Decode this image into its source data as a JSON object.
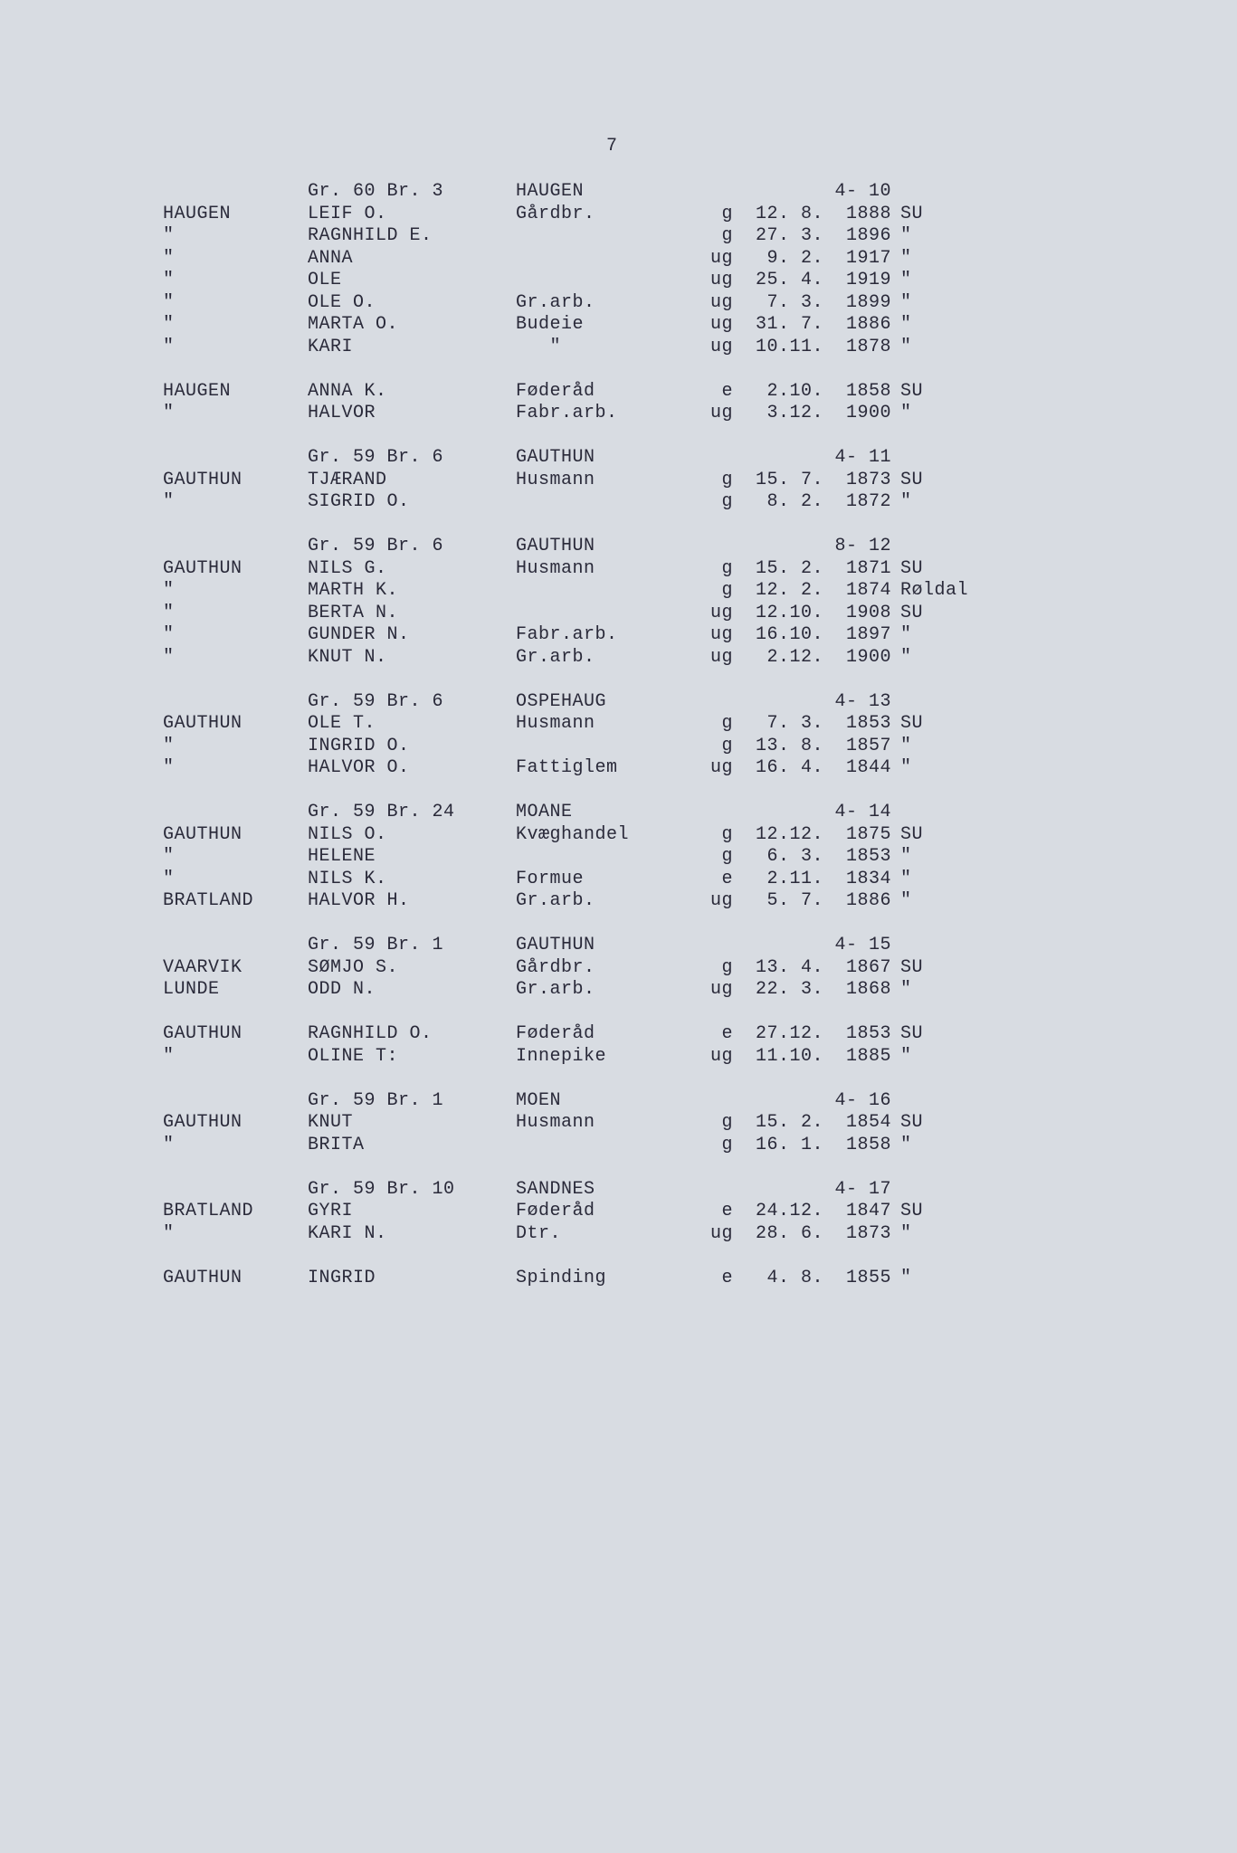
{
  "page_number": "7",
  "background_color": "#d8dce2",
  "text_color": "#2a2a3a",
  "font": "Courier New",
  "font_size_pt": 15,
  "groups": [
    {
      "header": {
        "grbr": "Gr. 60 Br. 3",
        "place": "HAUGEN",
        "code": "4- 10"
      },
      "rows": [
        {
          "c1": "HAUGEN",
          "c2": "LEIF O.",
          "c3": "Gårdbr.",
          "c4": "g",
          "c5": "12. 8.",
          "c6": "1888",
          "c7": "SU"
        },
        {
          "c1": "\"",
          "c2": "RAGNHILD E.",
          "c3": "",
          "c4": "g",
          "c5": "27. 3.",
          "c6": "1896",
          "c7": "\""
        },
        {
          "c1": "\"",
          "c2": "ANNA",
          "c3": "",
          "c4": "ug",
          "c5": "9. 2.",
          "c6": "1917",
          "c7": "\""
        },
        {
          "c1": "\"",
          "c2": "OLE",
          "c3": "",
          "c4": "ug",
          "c5": "25. 4.",
          "c6": "1919",
          "c7": "\""
        },
        {
          "c1": "\"",
          "c2": "OLE O.",
          "c3": "Gr.arb.",
          "c4": "ug",
          "c5": "7. 3.",
          "c6": "1899",
          "c7": "\""
        },
        {
          "c1": "\"",
          "c2": "MARTA O.",
          "c3": "Budeie",
          "c4": "ug",
          "c5": "31. 7.",
          "c6": "1886",
          "c7": "\""
        },
        {
          "c1": "\"",
          "c2": "KARI",
          "c3": "   \"",
          "c4": "ug",
          "c5": "10.11.",
          "c6": "1878",
          "c7": "\""
        }
      ],
      "gap_after": true
    },
    {
      "header": null,
      "rows": [
        {
          "c1": "HAUGEN",
          "c2": "ANNA K.",
          "c3": "Føderåd",
          "c4": "e",
          "c5": "2.10.",
          "c6": "1858",
          "c7": "SU"
        },
        {
          "c1": "\"",
          "c2": "HALVOR",
          "c3": "Fabr.arb.",
          "c4": "ug",
          "c5": "3.12.",
          "c6": "1900",
          "c7": "\""
        }
      ],
      "gap_after": true
    },
    {
      "header": {
        "grbr": "Gr. 59 Br. 6",
        "place": "GAUTHUN",
        "code": "4- 11"
      },
      "rows": [
        {
          "c1": "GAUTHUN",
          "c2": "TJÆRAND",
          "c3": "Husmann",
          "c4": "g",
          "c5": "15. 7.",
          "c6": "1873",
          "c7": "SU"
        },
        {
          "c1": "\"",
          "c2": "SIGRID O.",
          "c3": "",
          "c4": "g",
          "c5": "8. 2.",
          "c6": "1872",
          "c7": "\""
        }
      ],
      "gap_after": true
    },
    {
      "header": {
        "grbr": "Gr. 59 Br. 6",
        "place": "GAUTHUN",
        "code": "8- 12"
      },
      "rows": [
        {
          "c1": "GAUTHUN",
          "c2": "NILS G.",
          "c3": "Husmann",
          "c4": "g",
          "c5": "15. 2.",
          "c6": "1871",
          "c7": "SU"
        },
        {
          "c1": "\"",
          "c2": "MARTH K.",
          "c3": "",
          "c4": "g",
          "c5": "12. 2.",
          "c6": "1874",
          "c7": "Røldal"
        },
        {
          "c1": "\"",
          "c2": "BERTA N.",
          "c3": "",
          "c4": "ug",
          "c5": "12.10.",
          "c6": "1908",
          "c7": "SU"
        },
        {
          "c1": "\"",
          "c2": "GUNDER N.",
          "c3": "Fabr.arb.",
          "c4": "ug",
          "c5": "16.10.",
          "c6": "1897",
          "c7": "\""
        },
        {
          "c1": "\"",
          "c2": "KNUT N.",
          "c3": "Gr.arb.",
          "c4": "ug",
          "c5": "2.12.",
          "c6": "1900",
          "c7": "\""
        }
      ],
      "gap_after": true
    },
    {
      "header": {
        "grbr": "Gr. 59 Br. 6",
        "place": "OSPEHAUG",
        "code": "4- 13"
      },
      "rows": [
        {
          "c1": "GAUTHUN",
          "c2": "OLE T.",
          "c3": "Husmann",
          "c4": "g",
          "c5": "7. 3.",
          "c6": "1853",
          "c7": "SU"
        },
        {
          "c1": "\"",
          "c2": "INGRID O.",
          "c3": "",
          "c4": "g",
          "c5": "13. 8.",
          "c6": "1857",
          "c7": "\""
        },
        {
          "c1": "\"",
          "c2": "HALVOR O.",
          "c3": "Fattiglem",
          "c4": "ug",
          "c5": "16. 4.",
          "c6": "1844",
          "c7": "\""
        }
      ],
      "gap_after": true
    },
    {
      "header": {
        "grbr": "Gr. 59 Br. 24",
        "place": "MOANE",
        "code": "4- 14"
      },
      "rows": [
        {
          "c1": "GAUTHUN",
          "c2": "NILS O.",
          "c3": "Kvæghandel",
          "c4": "g",
          "c5": "12.12.",
          "c6": "1875",
          "c7": "SU"
        },
        {
          "c1": "\"",
          "c2": "HELENE",
          "c3": "",
          "c4": "g",
          "c5": "6. 3.",
          "c6": "1853",
          "c7": "\""
        },
        {
          "c1": "\"",
          "c2": "NILS K.",
          "c3": "Formue",
          "c4": "e",
          "c5": "2.11.",
          "c6": "1834",
          "c7": "\""
        },
        {
          "c1": "BRATLAND",
          "c2": "HALVOR H.",
          "c3": "Gr.arb.",
          "c4": "ug",
          "c5": "5. 7.",
          "c6": "1886",
          "c7": "\""
        }
      ],
      "gap_after": true
    },
    {
      "header": {
        "grbr": "Gr. 59 Br. 1",
        "place": "GAUTHUN",
        "code": "4- 15"
      },
      "rows": [
        {
          "c1": "VAARVIK",
          "c2": "SØMJO S.",
          "c3": "Gårdbr.",
          "c4": "g",
          "c5": "13. 4.",
          "c6": "1867",
          "c7": "SU"
        },
        {
          "c1": "LUNDE",
          "c2": "ODD N.",
          "c3": "Gr.arb.",
          "c4": "ug",
          "c5": "22. 3.",
          "c6": "1868",
          "c7": "\""
        }
      ],
      "gap_after": true
    },
    {
      "header": null,
      "rows": [
        {
          "c1": "GAUTHUN",
          "c2": "RAGNHILD O.",
          "c3": "Føderåd",
          "c4": "e",
          "c5": "27.12.",
          "c6": "1853",
          "c7": "SU"
        },
        {
          "c1": "\"",
          "c2": "OLINE T:",
          "c3": "Innepike",
          "c4": "ug",
          "c5": "11.10.",
          "c6": "1885",
          "c7": "\""
        }
      ],
      "gap_after": true
    },
    {
      "header": {
        "grbr": "Gr. 59 Br. 1",
        "place": "MOEN",
        "code": "4- 16"
      },
      "rows": [
        {
          "c1": "GAUTHUN",
          "c2": "KNUT",
          "c3": "Husmann",
          "c4": "g",
          "c5": "15. 2.",
          "c6": "1854",
          "c7": "SU"
        },
        {
          "c1": "\"",
          "c2": "BRITA",
          "c3": "",
          "c4": "g",
          "c5": "16. 1.",
          "c6": "1858",
          "c7": "\""
        }
      ],
      "gap_after": true
    },
    {
      "header": {
        "grbr": "Gr. 59 Br. 10",
        "place": "SANDNES",
        "code": "4- 17"
      },
      "rows": [
        {
          "c1": "BRATLAND",
          "c2": "GYRI",
          "c3": "Føderåd",
          "c4": "e",
          "c5": "24.12.",
          "c6": "1847",
          "c7": "SU"
        },
        {
          "c1": "\"",
          "c2": "KARI N.",
          "c3": "Dtr.",
          "c4": "ug",
          "c5": "28. 6.",
          "c6": "1873",
          "c7": "\""
        }
      ],
      "gap_after": true
    },
    {
      "header": null,
      "rows": [
        {
          "c1": "GAUTHUN",
          "c2": "INGRID",
          "c3": "Spinding",
          "c4": "e",
          "c5": "4. 8.",
          "c6": "1855",
          "c7": "\""
        }
      ],
      "gap_after": false
    }
  ]
}
